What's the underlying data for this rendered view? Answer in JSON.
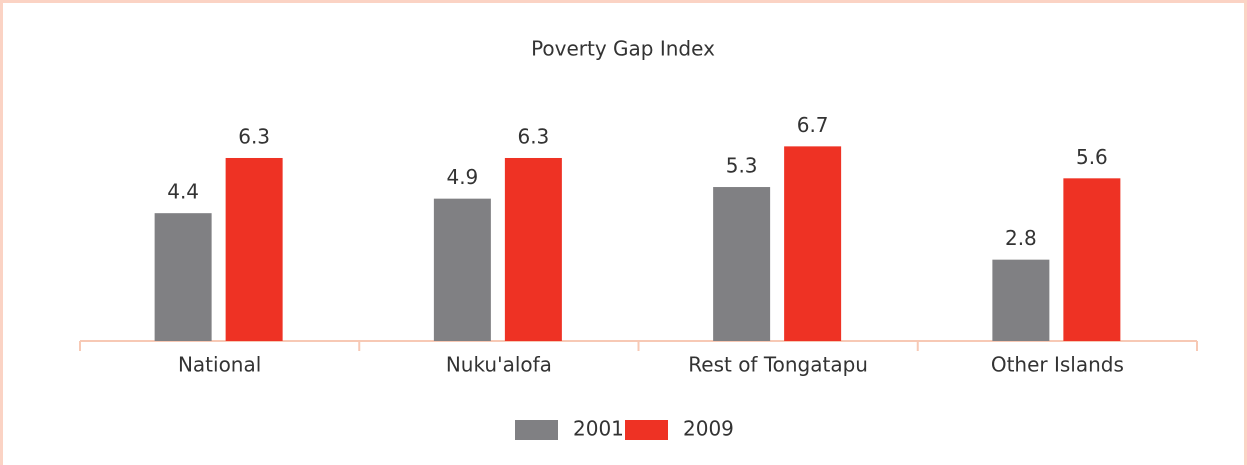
{
  "chart_data": {
    "type": "bar",
    "title": "Poverty Gap Index",
    "categories": [
      "National",
      "Nuku'alofa",
      "Rest of Tongatapu",
      "Other Islands"
    ],
    "series": [
      {
        "name": "2001",
        "color": "#808083",
        "values": [
          4.4,
          4.9,
          5.3,
          2.8
        ]
      },
      {
        "name": "2009",
        "color": "#ee3224",
        "values": [
          6.3,
          6.3,
          6.7,
          5.6
        ]
      }
    ],
    "legend": "bottom"
  }
}
